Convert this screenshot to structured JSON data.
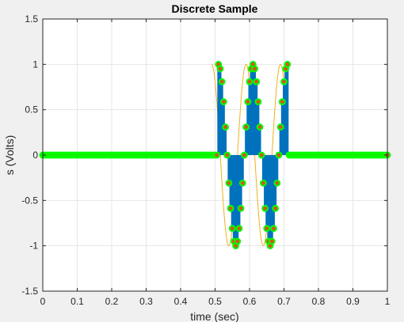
{
  "chart_data": {
    "type": "line",
    "title": "Discrete Sample",
    "xlabel": "time (sec)",
    "ylabel": "s (Volts)",
    "xlim": [
      0,
      1
    ],
    "ylim": [
      -1.5,
      1.5
    ],
    "xticks": [
      "0",
      "0.1",
      "0.2",
      "0.3",
      "0.4",
      "0.5",
      "0.6",
      "0.7",
      "0.8",
      "0.9",
      "1"
    ],
    "yticks": [
      "1.5",
      "1",
      "0.5",
      "0",
      "-0.5",
      "-1",
      "-1.5"
    ],
    "grid": true,
    "legend": "none",
    "signal": {
      "description": "pulsed sine burst, period 0.1 s, amplitude 1",
      "pulse_start": 0.51,
      "pulse_end": 0.71,
      "frequency_hz": 10,
      "amplitude": 1,
      "sample_step": 0.005
    },
    "series": [
      {
        "kind": "continuous",
        "color": "#edb120",
        "x_range": [
          0.49,
          0.71
        ]
      },
      {
        "kind": "stem",
        "color": "#0072bd"
      },
      {
        "kind": "markers",
        "face_color": "#d95319",
        "edge_color": "#00ff00"
      }
    ],
    "colors": {
      "axes_bg": "#ffffff",
      "figure_bg": "#f0f0f0",
      "grid": "#e6e6e6",
      "axis": "#262626"
    }
  }
}
